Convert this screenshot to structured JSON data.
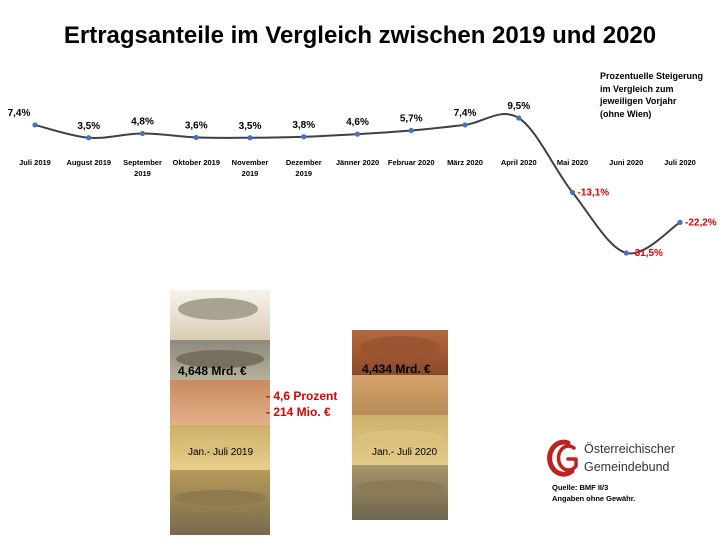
{
  "title": "Ertragsanteile im Vergleich zwischen 2019 und 2020",
  "legend_note": [
    "Prozentuelle Steigerung",
    "im Vergleich zum",
    "jeweiligen Vorjahr",
    "(ohne Wien)"
  ],
  "chart_data": {
    "type": "line",
    "title": "Ertragsanteile im Vergleich zwischen 2019 und 2020",
    "ylabel": "",
    "xlabel": "",
    "grid": false,
    "x": [
      [
        "Juli 2019"
      ],
      [
        "August 2019"
      ],
      [
        "September",
        "2019"
      ],
      [
        "Oktober 2019"
      ],
      [
        "November",
        "2019"
      ],
      [
        "Dezember",
        "2019"
      ],
      [
        "Jänner 2020"
      ],
      [
        "Februar 2020"
      ],
      [
        "März 2020"
      ],
      [
        "April 2020"
      ],
      [
        "Mai 2020"
      ],
      [
        "Juni 2020"
      ],
      [
        "Juli 2020"
      ]
    ],
    "values": [
      7.4,
      3.5,
      4.8,
      3.6,
      3.5,
      3.8,
      4.6,
      5.7,
      7.4,
      9.5,
      -13.1,
      -31.5,
      -22.2
    ],
    "data_labels": [
      "7,4%",
      "3,5%",
      "4,8%",
      "3,6%",
      "3,5%",
      "3,8%",
      "4,6%",
      "5,7%",
      "7,4%",
      "9,5%",
      "-13,1%",
      "-31,5%",
      "-22,2%"
    ],
    "line_color": "#404040",
    "marker_color": "#4472c4",
    "negative_label_color": "#e00000"
  },
  "comparison": {
    "left_amount": "4,648 Mrd. €",
    "left_period": "Jan.- Juli 2019",
    "right_amount": "4,434 Mrd. €",
    "right_period": "Jan.- Juli 2020",
    "diff_percent": "- 4,6 Prozent",
    "diff_amount": "- 214 Mio. €",
    "diff_color": "#e00000"
  },
  "logo": {
    "line1": "Österreichischer",
    "line2": "Gemeindebund",
    "icon": "gemeindebund-logo-icon",
    "color": "#c0201e"
  },
  "source": {
    "line1": "Quelle: BMF II/3",
    "line2": "Angaben ohne Gewähr."
  }
}
